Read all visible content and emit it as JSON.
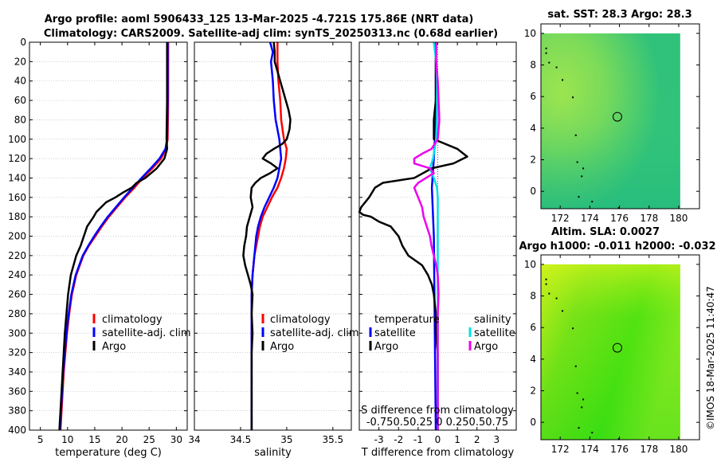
{
  "header": {
    "line1": "Argo profile: aoml 5906433_125 13-Mar-2025 -4.721S 175.86E (NRT data)",
    "line2": "Climatology: CARS2009. Satellite-adj clim: synTS_20250313.nc (0.68d earlier)"
  },
  "timestamp": "©IMOS 18-Mar-2025 11:40:47",
  "colors": {
    "climatology": "#ff0000",
    "satellite": "#0000ff",
    "argo": "#000000",
    "sal_satellite": "#00e0e8",
    "sal_argo": "#ee00ee",
    "map_top_bg": "#5fd65a",
    "map_bottom_bg": "#40e010"
  },
  "chart_data": [
    {
      "id": "temperature",
      "type": "line",
      "xlabel": "temperature (deg C)",
      "xlim": [
        3,
        32
      ],
      "xticks": [
        "5",
        "10",
        "15",
        "20",
        "25",
        "30"
      ],
      "xtick_values": [
        5,
        10,
        15,
        20,
        25,
        30
      ],
      "ylim": [
        0,
        400
      ],
      "yticks": [
        "0",
        "20",
        "40",
        "60",
        "80",
        "100",
        "120",
        "140",
        "160",
        "180",
        "200",
        "220",
        "240",
        "260",
        "280",
        "300",
        "320",
        "340",
        "360",
        "380",
        "400"
      ],
      "ytick_values": [
        0,
        20,
        40,
        60,
        80,
        100,
        120,
        140,
        160,
        180,
        200,
        220,
        240,
        260,
        280,
        300,
        320,
        340,
        360,
        380,
        400
      ],
      "legend": [
        "climatology",
        "satellite-adj. clim",
        "Argo"
      ],
      "series": [
        {
          "name": "climatology",
          "depth": [
            0,
            60,
            100,
            110,
            120,
            130,
            140,
            150,
            160,
            170,
            180,
            190,
            200,
            210,
            220,
            240,
            260,
            280,
            300,
            320,
            340,
            360,
            380,
            400
          ],
          "values": [
            28.5,
            28.5,
            28.4,
            28.1,
            27.2,
            25.6,
            23.8,
            22.3,
            20.6,
            19.1,
            17.6,
            16.3,
            15.1,
            13.9,
            12.9,
            11.6,
            10.8,
            10.3,
            9.9,
            9.6,
            9.3,
            9.1,
            8.9,
            8.7
          ]
        },
        {
          "name": "satellite-adj. clim",
          "depth": [
            0,
            60,
            100,
            110,
            120,
            130,
            140,
            150,
            160,
            170,
            180,
            190,
            200,
            210,
            220,
            240,
            260,
            280,
            300,
            320,
            340,
            360,
            380,
            400
          ],
          "values": [
            28.4,
            28.4,
            28.3,
            28.0,
            26.9,
            25.3,
            23.6,
            22.0,
            20.4,
            18.9,
            17.4,
            16.1,
            14.9,
            13.8,
            12.8,
            11.5,
            10.7,
            10.2,
            9.8,
            9.5,
            9.2,
            9.0,
            8.8,
            8.6
          ]
        },
        {
          "name": "Argo",
          "depth": [
            0,
            60,
            100,
            110,
            120,
            130,
            140,
            145,
            150,
            155,
            160,
            165,
            170,
            175,
            180,
            190,
            200,
            210,
            220,
            230,
            240,
            260,
            280,
            300,
            320,
            340,
            360,
            380,
            400
          ],
          "values": [
            28.3,
            28.3,
            28.2,
            28.3,
            27.8,
            26.4,
            24.3,
            22.7,
            21.8,
            20.2,
            18.8,
            17.1,
            16.2,
            15.3,
            14.8,
            13.6,
            13.0,
            12.4,
            11.6,
            11.1,
            10.6,
            10.1,
            9.8,
            9.5,
            9.3,
            9.1,
            8.9,
            8.7,
            8.5
          ]
        }
      ]
    },
    {
      "id": "salinity",
      "type": "line",
      "xlabel": "salinity",
      "xlim": [
        34,
        35.7
      ],
      "xticks": [
        "34",
        "34.5",
        "35",
        "35.5"
      ],
      "xtick_values": [
        34,
        34.5,
        35,
        35.5
      ],
      "ylim": [
        0,
        400
      ],
      "legend": [
        "climatology",
        "satellite-adj. clim",
        "Argo"
      ],
      "series": [
        {
          "name": "climatology",
          "depth": [
            0,
            20,
            40,
            60,
            80,
            100,
            110,
            120,
            130,
            140,
            150,
            160,
            170,
            180,
            190,
            200,
            210,
            220,
            240,
            260,
            280,
            300,
            320,
            340,
            360,
            380,
            400
          ],
          "values": [
            34.9,
            34.9,
            34.91,
            34.93,
            34.94,
            34.97,
            35.0,
            34.99,
            34.97,
            34.94,
            34.9,
            34.84,
            34.79,
            34.74,
            34.71,
            34.69,
            34.67,
            34.65,
            34.63,
            34.62,
            34.62,
            34.62,
            34.62,
            34.62,
            34.62,
            34.62,
            34.62
          ]
        },
        {
          "name": "satellite-adj. clim",
          "depth": [
            0,
            10,
            20,
            40,
            60,
            80,
            100,
            120,
            140,
            150,
            160,
            170,
            180,
            190,
            200,
            210,
            220,
            240,
            260,
            280,
            300,
            320,
            340,
            360,
            380,
            400
          ],
          "values": [
            34.82,
            34.85,
            34.83,
            34.85,
            34.86,
            34.88,
            34.92,
            34.94,
            34.9,
            34.86,
            34.81,
            34.76,
            34.72,
            34.69,
            34.67,
            34.66,
            34.65,
            34.63,
            34.62,
            34.62,
            34.62,
            34.62,
            34.62,
            34.62,
            34.62,
            34.62
          ]
        },
        {
          "name": "Argo",
          "depth": [
            0,
            10,
            20,
            30,
            40,
            50,
            60,
            70,
            80,
            90,
            100,
            105,
            110,
            115,
            120,
            125,
            130,
            135,
            140,
            145,
            150,
            160,
            170,
            180,
            190,
            200,
            210,
            220,
            230,
            240,
            250,
            260,
            280,
            300,
            320,
            340,
            360,
            380,
            400
          ],
          "values": [
            34.86,
            34.87,
            34.87,
            34.9,
            34.93,
            34.96,
            34.99,
            35.02,
            35.04,
            35.03,
            35.0,
            34.95,
            34.86,
            34.78,
            34.74,
            34.83,
            34.9,
            34.82,
            34.72,
            34.66,
            34.62,
            34.61,
            34.63,
            34.6,
            34.57,
            34.56,
            34.54,
            34.53,
            34.55,
            34.58,
            34.61,
            34.63,
            34.62,
            34.63,
            34.62,
            34.62,
            34.62,
            34.62,
            34.62
          ]
        }
      ]
    },
    {
      "id": "difference",
      "type": "line",
      "xlabel": "T difference from climatology",
      "xlim": [
        -4,
        4
      ],
      "xticks": [
        "-3",
        "-2",
        "-1",
        "0",
        "1",
        "2",
        "3"
      ],
      "xtick_values": [
        -3,
        -2,
        -1,
        0,
        1,
        2,
        3
      ],
      "ylim": [
        0,
        400
      ],
      "legend_titles": [
        "temperature",
        "salinity"
      ],
      "legend": [
        "satellite",
        "Argo",
        "satellite",
        "Argo"
      ],
      "s_axis_label": "S difference from climatology",
      "s_axis_ticks": "-0.750.50.25 0 0.250.50.75",
      "series": [
        {
          "name": "T satellite",
          "depth": [
            0,
            80,
            120,
            150,
            200,
            300,
            400
          ],
          "values": [
            -0.1,
            -0.1,
            -0.2,
            -0.3,
            -0.2,
            -0.15,
            -0.1
          ]
        },
        {
          "name": "T Argo",
          "depth": [
            0,
            60,
            80,
            100,
            110,
            118,
            125,
            130,
            140,
            145,
            150,
            160,
            170,
            175,
            178,
            180,
            185,
            190,
            200,
            210,
            220,
            230,
            240,
            250,
            260,
            280,
            300,
            320,
            340,
            400
          ],
          "values": [
            -0.1,
            -0.1,
            -0.2,
            -0.2,
            1.0,
            1.5,
            0.8,
            -0.3,
            -1.2,
            -2.8,
            -3.2,
            -3.5,
            -3.9,
            -4.0,
            -3.8,
            -3.4,
            -3.0,
            -2.4,
            -2.0,
            -1.8,
            -1.5,
            -0.8,
            -0.5,
            -0.3,
            -0.2,
            -0.1,
            -0.1,
            0.0,
            0.0,
            0.0
          ]
        },
        {
          "name": "S satellite",
          "depth": [
            0,
            20,
            40,
            60,
            80,
            100,
            120,
            130,
            140,
            150,
            160,
            180,
            200,
            220,
            240,
            300,
            400
          ],
          "values": [
            -0.05,
            -0.02,
            -0.01,
            -0.01,
            -0.01,
            -0.02,
            -0.06,
            -0.1,
            -0.05,
            -0.01,
            0.0,
            0.0,
            0.0,
            0.0,
            0.0,
            0.0,
            0.0
          ]
        },
        {
          "name": "S Argo",
          "depth": [
            0,
            20,
            40,
            60,
            80,
            100,
            110,
            115,
            120,
            125,
            130,
            135,
            140,
            145,
            150,
            160,
            170,
            180,
            190,
            200,
            210,
            220,
            230,
            240,
            260,
            280,
            300,
            320,
            340,
            400
          ],
          "values": [
            -0.02,
            -0.02,
            0.0,
            0.01,
            0.02,
            0.0,
            -0.08,
            -0.2,
            -0.3,
            -0.3,
            -0.1,
            -0.05,
            -0.15,
            -0.25,
            -0.3,
            -0.25,
            -0.2,
            -0.18,
            -0.14,
            -0.1,
            -0.08,
            -0.05,
            -0.02,
            0.0,
            0.01,
            0.0,
            0.0,
            0.0,
            0.0,
            0.0
          ]
        }
      ]
    },
    {
      "id": "map_sst",
      "type": "heatmap",
      "title": "sat. SST: 28.3 Argo: 28.3",
      "xticks": [
        "172",
        "174",
        "176",
        "178",
        "180"
      ],
      "xtick_values": [
        172,
        174,
        176,
        178,
        180
      ],
      "yticks": [
        "0",
        "2",
        "4",
        "6",
        "8",
        "10"
      ],
      "ytick_values": [
        0,
        2,
        4,
        6,
        8,
        10
      ],
      "xlim": [
        170.7,
        181.4
      ],
      "ylim": [
        -1.1,
        10.6
      ],
      "data_extent": {
        "lon": [
          170.7,
          180.1
        ],
        "lat": [
          -1.1,
          10.0
        ]
      },
      "argo_location": [
        175.86,
        4.72
      ]
    },
    {
      "id": "map_sla",
      "type": "heatmap",
      "title": "Altim. SLA: 0.0027",
      "subtitle": "Argo h1000: -0.011 h2000: -0.032",
      "xticks": [
        "172",
        "174",
        "176",
        "178",
        "180"
      ],
      "xtick_values": [
        172,
        174,
        176,
        178,
        180
      ],
      "yticks": [
        "0",
        "2",
        "4",
        "6",
        "8",
        "10"
      ],
      "ytick_values": [
        0,
        2,
        4,
        6,
        8,
        10
      ],
      "xlim": [
        170.7,
        181.4
      ],
      "ylim": [
        -1.1,
        10.6
      ],
      "data_extent": {
        "lon": [
          170.7,
          180.1
        ],
        "lat": [
          -1.1,
          10.0
        ]
      },
      "argo_location": [
        175.86,
        4.72
      ]
    }
  ]
}
